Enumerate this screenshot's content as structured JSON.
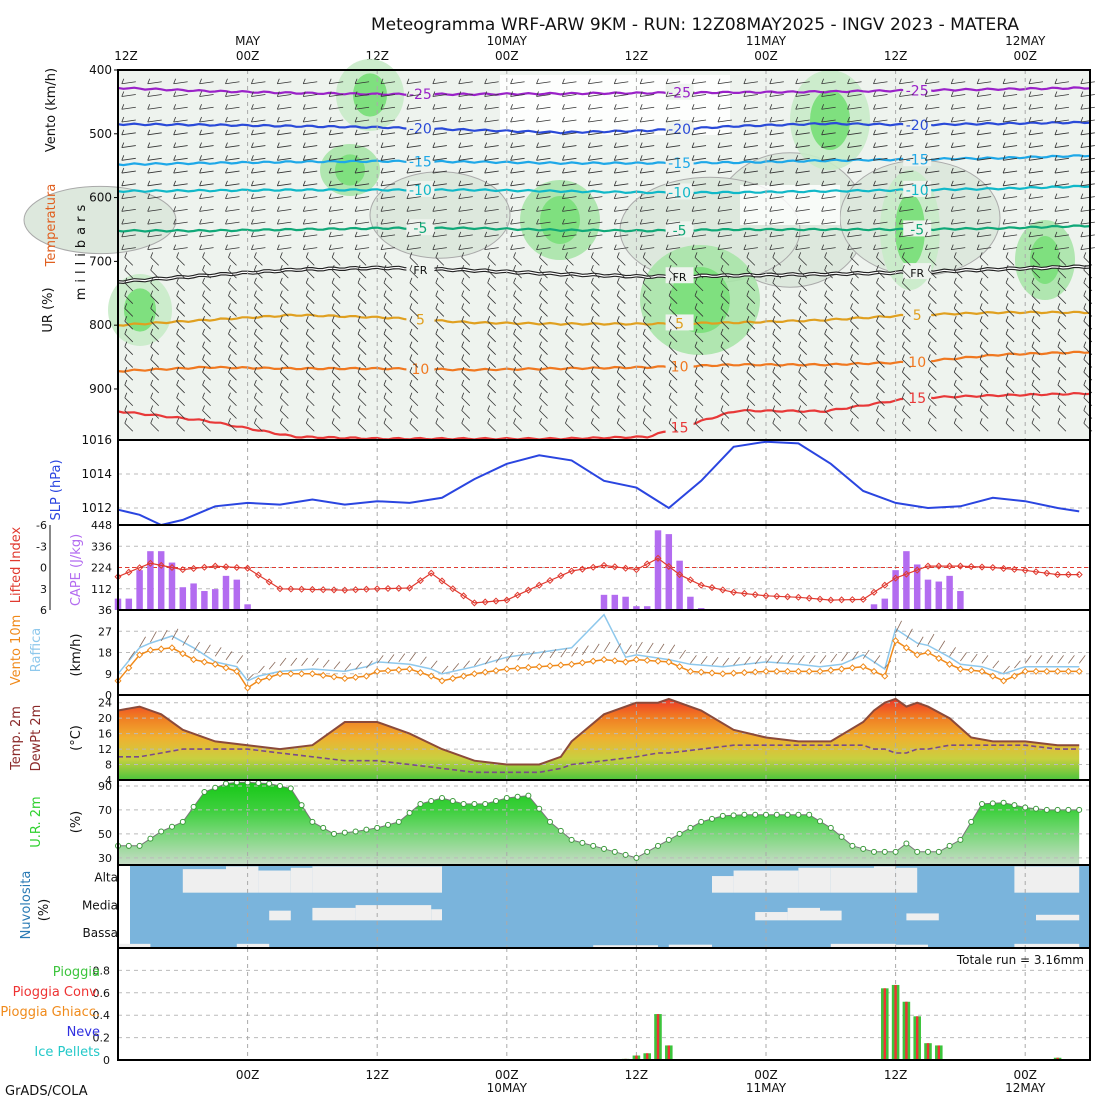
{
  "title": "Meteogramma WRF-ARW 9KM - RUN: 12Z08MAY2025 - INGV 2023 - MATERA",
  "footer": "GrADS/COLA",
  "time_axis": {
    "top_labels": [
      {
        "hour": 0,
        "text": "12Z",
        "sub": ""
      },
      {
        "hour": 12,
        "text": "00Z",
        "sub": "MAY"
      },
      {
        "hour": 24,
        "text": "12Z",
        "sub": ""
      },
      {
        "hour": 36,
        "text": "00Z",
        "sub": "10MAY"
      },
      {
        "hour": 48,
        "text": "12Z",
        "sub": ""
      },
      {
        "hour": 60,
        "text": "00Z",
        "sub": "11MAY"
      },
      {
        "hour": 72,
        "text": "12Z",
        "sub": ""
      },
      {
        "hour": 84,
        "text": "00Z",
        "sub": "12MAY"
      }
    ],
    "bottom_labels": [
      {
        "hour": 12,
        "text": "00Z",
        "sub": ""
      },
      {
        "hour": 24,
        "text": "12Z",
        "sub": ""
      },
      {
        "hour": 36,
        "text": "00Z",
        "sub": "10MAY"
      },
      {
        "hour": 48,
        "text": "12Z",
        "sub": ""
      },
      {
        "hour": 60,
        "text": "00Z",
        "sub": "11MAY"
      },
      {
        "hour": 72,
        "text": "12Z",
        "sub": ""
      },
      {
        "hour": 84,
        "text": "00Z",
        "sub": "12MAY"
      }
    ]
  },
  "colors": {
    "slp": "#2a45e0",
    "cape": "#b36cf0",
    "lifted_index": "#e03a30",
    "wind": "#f08a1a",
    "gust": "#8ec8ec",
    "temp_line": "#8b4a3a",
    "dewpoint": "#8b4a3a",
    "rh_fill": "#2fd12f",
    "cloud_bg": "#7ab4dc",
    "cloud_fill": "#efefef",
    "rain": "#3cc43c",
    "rain_conv": "#ee3333",
    "sleet": "#f08a1a",
    "snow": "#3030e0",
    "ice": "#22c8c8"
  },
  "chart_data": [
    {
      "type": "contour",
      "id": "vertical-profile",
      "axis_labels": [
        "Vento (km/h)",
        "Temperatura",
        "UR (%)",
        "millibars"
      ],
      "ylim": [
        400,
        980
      ],
      "yticks": [
        400,
        500,
        600,
        700,
        800,
        900
      ],
      "isotherms": [
        {
          "label": "-25",
          "color": "#9a22c8",
          "p": [
            428,
            433,
            436,
            438,
            438,
            437,
            436,
            435,
            434,
            432,
            430,
            428
          ]
        },
        {
          "label": "-20",
          "color": "#2a4ad8",
          "p": [
            485,
            486,
            488,
            490,
            494,
            498,
            495,
            488,
            484,
            486,
            484,
            482
          ]
        },
        {
          "label": "-15",
          "color": "#1ea8e8",
          "p": [
            548,
            546,
            544,
            543,
            544,
            546,
            546,
            545,
            542,
            540,
            538,
            534
          ]
        },
        {
          "label": "-10",
          "color": "#10b8c8",
          "p": [
            590,
            589,
            588,
            588,
            588,
            590,
            592,
            592,
            590,
            588,
            586,
            582
          ]
        },
        {
          "label": "-5",
          "color": "#10a878",
          "p": [
            652,
            652,
            650,
            648,
            648,
            651,
            652,
            650,
            650,
            650,
            648,
            644
          ]
        },
        {
          "label": "FR",
          "color": "#222222",
          "p": [
            732,
            722,
            713,
            710,
            714,
            720,
            724,
            722,
            720,
            717,
            712,
            708
          ]
        },
        {
          "label": "5",
          "color": "#e0a020",
          "p": [
            800,
            792,
            784,
            788,
            796,
            798,
            798,
            796,
            792,
            784,
            780,
            780
          ]
        },
        {
          "label": "10",
          "color": "#f07820",
          "p": [
            872,
            866,
            868,
            868,
            870,
            868,
            866,
            862,
            862,
            858,
            846,
            842
          ]
        },
        {
          "label": "15",
          "color": "#e83838",
          "p": [
            935,
            950,
            975,
            978,
            978,
            978,
            975,
            934,
            935,
            914,
            910,
            907
          ]
        }
      ]
    },
    {
      "type": "line",
      "id": "slp",
      "label": "SLP (hPa)",
      "ylim": [
        1011,
        1016
      ],
      "yticks": [
        1012,
        1014,
        1016
      ],
      "x": [
        0,
        2,
        4,
        6,
        9,
        12,
        15,
        18,
        21,
        24,
        27,
        30,
        33,
        36,
        39,
        42,
        45,
        48,
        51,
        54,
        57,
        60,
        63,
        66,
        69,
        72,
        75,
        78,
        81,
        84,
        87,
        89
      ],
      "values": [
        1011.9,
        1011.6,
        1011.0,
        1011.3,
        1012.1,
        1012.3,
        1012.2,
        1012.5,
        1012.2,
        1012.4,
        1012.3,
        1012.6,
        1013.7,
        1014.6,
        1015.1,
        1014.8,
        1013.6,
        1013.2,
        1012.0,
        1013.6,
        1015.6,
        1015.9,
        1015.8,
        1014.6,
        1013.0,
        1012.3,
        1012.0,
        1012.1,
        1012.6,
        1012.4,
        1012.0,
        1011.8
      ]
    },
    {
      "type": "bar+line",
      "id": "cape-li",
      "labels": [
        "Lifted Index",
        "CAPE (J/kg)"
      ],
      "cape_ylim": [
        0,
        448
      ],
      "cape_yticks": [
        112,
        224,
        336,
        448
      ],
      "li_ylim": [
        6,
        -6
      ],
      "li_yticks": [
        -6,
        -3,
        0,
        3,
        6
      ],
      "cape_x": [
        0,
        1,
        2,
        3,
        4,
        5,
        6,
        7,
        8,
        9,
        10,
        11,
        12,
        45,
        46,
        47,
        48,
        49,
        50,
        51,
        52,
        53,
        54,
        70,
        71,
        72,
        73,
        74,
        75,
        76,
        77,
        78
      ],
      "cape_values": [
        60,
        60,
        210,
        310,
        310,
        250,
        120,
        140,
        100,
        110,
        180,
        160,
        30,
        80,
        80,
        70,
        20,
        20,
        420,
        400,
        260,
        70,
        10,
        30,
        60,
        210,
        310,
        240,
        160,
        150,
        180,
        100
      ],
      "li_x": [
        0,
        3,
        6,
        9,
        12,
        15,
        18,
        21,
        24,
        27,
        29,
        31,
        33,
        36,
        39,
        42,
        45,
        48,
        50,
        52,
        54,
        57,
        60,
        63,
        66,
        69,
        72,
        75,
        78,
        81,
        84,
        87,
        89
      ],
      "li_values": [
        1.3,
        -0.6,
        0.3,
        -0.2,
        0.1,
        3.0,
        3.1,
        3.2,
        3.0,
        2.9,
        0.8,
        3.0,
        5.0,
        4.6,
        2.5,
        0.5,
        -0.3,
        0.3,
        -1.3,
        1.0,
        2.5,
        3.5,
        4.0,
        4.2,
        4.6,
        4.5,
        1.5,
        -0.2,
        -0.2,
        0.0,
        0.4,
        1.0,
        1.0
      ]
    },
    {
      "type": "line",
      "id": "wind",
      "labels": [
        "Vento 10m",
        "Raffica",
        "(km/h)"
      ],
      "ylim": [
        0,
        36
      ],
      "yticks": [
        0,
        9,
        18,
        27,
        36
      ],
      "x": [
        0,
        2,
        3,
        5,
        7,
        9,
        11,
        12,
        13,
        15,
        18,
        21,
        23,
        24,
        27,
        29,
        30,
        33,
        36,
        39,
        42,
        45,
        47,
        48,
        51,
        53,
        56,
        60,
        63,
        65,
        67,
        69,
        71,
        72,
        74,
        75,
        77,
        78,
        80,
        82,
        84,
        86,
        89
      ],
      "series": [
        {
          "name": "Vento 10m",
          "values": [
            6,
            17,
            19,
            20,
            15,
            13,
            10,
            3,
            6,
            9,
            9,
            7,
            8,
            10,
            11,
            8,
            6,
            9,
            11,
            12,
            13,
            15,
            14,
            15,
            14,
            10,
            9,
            10,
            10,
            10,
            11,
            12,
            8,
            23,
            17,
            18,
            13,
            11,
            10,
            6,
            10,
            10,
            10
          ]
        },
        {
          "name": "Raffica",
          "values": [
            9,
            20,
            22,
            25,
            20,
            14,
            12,
            6,
            8,
            10,
            11,
            10,
            12,
            14,
            13,
            11,
            9,
            12,
            16,
            18,
            20,
            34,
            16,
            17,
            15,
            13,
            12,
            14,
            13,
            12,
            13,
            17,
            11,
            28,
            22,
            21,
            16,
            13,
            12,
            9,
            12,
            12,
            12
          ]
        }
      ]
    },
    {
      "type": "area",
      "id": "temperature",
      "labels": [
        "Temp. 2m",
        "DewPt 2m",
        "(°C)"
      ],
      "ylim": [
        4,
        26
      ],
      "yticks": [
        4,
        8,
        12,
        16,
        20,
        24
      ],
      "x": [
        0,
        2,
        4,
        6,
        9,
        12,
        15,
        18,
        21,
        24,
        27,
        30,
        33,
        36,
        39,
        41,
        42,
        45,
        48,
        50,
        51,
        54,
        57,
        60,
        63,
        66,
        69,
        70,
        71,
        72,
        73,
        74,
        75,
        77,
        79,
        81,
        84,
        87,
        89
      ],
      "series": [
        {
          "name": "Temp. 2m",
          "values": [
            22,
            23,
            21,
            17,
            14,
            13,
            12,
            13,
            19,
            19,
            16,
            12,
            9,
            8,
            8,
            10,
            14,
            21,
            24,
            24,
            25,
            22,
            17,
            15,
            14,
            14,
            19,
            22,
            24,
            25,
            23,
            24,
            23,
            20,
            15,
            14,
            14,
            13,
            13
          ]
        },
        {
          "name": "DewPt 2m",
          "values": [
            10,
            10,
            11,
            12,
            12,
            12,
            11,
            10,
            9,
            9,
            8,
            7,
            6,
            6,
            6,
            7,
            8,
            9,
            10,
            11,
            11,
            12,
            13,
            13,
            13,
            13,
            13,
            12,
            12,
            11,
            11,
            12,
            12,
            13,
            13,
            13,
            13,
            12,
            12
          ]
        }
      ]
    },
    {
      "type": "area",
      "id": "rh",
      "labels": [
        "U.R. 2m",
        "(%)"
      ],
      "ylim": [
        24,
        95
      ],
      "yticks": [
        30,
        50,
        70,
        90
      ],
      "x": [
        0,
        2,
        4,
        6,
        8,
        10,
        11,
        12,
        14,
        16,
        18,
        20,
        22,
        24,
        26,
        28,
        30,
        32,
        34,
        36,
        38,
        40,
        42,
        44,
        46,
        48,
        50,
        52,
        54,
        56,
        58,
        60,
        62,
        64,
        66,
        68,
        70,
        72,
        73,
        74,
        76,
        78,
        80,
        82,
        84,
        86,
        89
      ],
      "values": [
        40,
        40,
        52,
        60,
        85,
        92,
        93,
        93,
        92,
        88,
        60,
        50,
        52,
        55,
        60,
        75,
        80,
        75,
        75,
        80,
        82,
        60,
        45,
        40,
        35,
        30,
        40,
        50,
        60,
        65,
        66,
        66,
        66,
        66,
        55,
        40,
        35,
        35,
        42,
        35,
        35,
        45,
        75,
        76,
        72,
        70,
        70
      ]
    },
    {
      "type": "heatmap",
      "id": "clouds",
      "labels": [
        "Nuvolosita",
        "(%)"
      ],
      "rows": [
        "Alta",
        "Media",
        "Bassa"
      ],
      "cells": {
        "Alta": [
          [
            6,
            10,
            0.85
          ],
          [
            10,
            13,
            0.95
          ],
          [
            13,
            16,
            0.8
          ],
          [
            16,
            18,
            0.9
          ],
          [
            18,
            30,
            0.95
          ],
          [
            55,
            57,
            0.6
          ],
          [
            57,
            63,
            0.8
          ],
          [
            63,
            66,
            0.9
          ],
          [
            66,
            70,
            0.9
          ],
          [
            70,
            72,
            0.95
          ],
          [
            72,
            74,
            0.9
          ],
          [
            83,
            89,
            0.95
          ]
        ],
        "Media": [
          [
            14,
            16,
            0.35
          ],
          [
            18,
            22,
            0.45
          ],
          [
            22,
            29,
            0.55
          ],
          [
            29,
            30,
            0.4
          ],
          [
            59,
            62,
            0.3
          ],
          [
            62,
            65,
            0.45
          ],
          [
            65,
            67,
            0.35
          ],
          [
            73,
            76,
            0.25
          ],
          [
            85,
            89,
            0.2
          ]
        ],
        "Bassa": [
          [
            0,
            3,
            0.15
          ],
          [
            11,
            14,
            0.15
          ],
          [
            44,
            50,
            0.1
          ],
          [
            51,
            55,
            0.12
          ],
          [
            66,
            72,
            0.15
          ],
          [
            72,
            75,
            0.12
          ],
          [
            83,
            89,
            0.15
          ]
        ]
      }
    },
    {
      "type": "bar",
      "id": "precip",
      "labels": [
        "Pioggia",
        "Pioggia Conv.",
        "Pioggia Ghiacc.",
        "Neve",
        "Ice Pellets"
      ],
      "annotation": "Totale run = 3.16mm",
      "ylim": [
        0,
        1
      ],
      "yticks": [
        0,
        0.2,
        0.4,
        0.6,
        0.8
      ],
      "x": [
        47,
        48,
        49,
        50,
        51,
        71,
        72,
        73,
        74,
        75,
        76,
        77,
        87
      ],
      "values": [
        0.01,
        0.04,
        0.06,
        0.41,
        0.13,
        0.64,
        0.67,
        0.52,
        0.39,
        0.15,
        0.13,
        0.0,
        0.02
      ]
    }
  ]
}
